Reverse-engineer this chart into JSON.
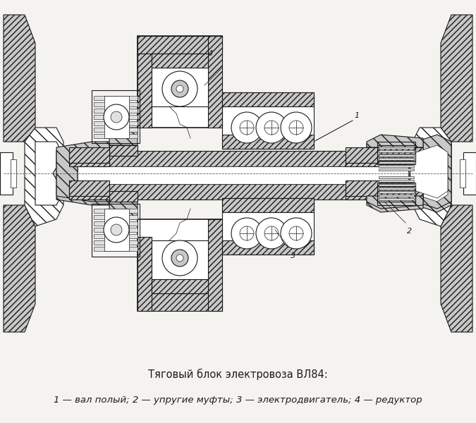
{
  "title_line1": "Тяговый блок электровоза ВЛ84:",
  "title_line2": "1 — вал полый; 2 — упругие муфты; 3 — электродвигатель; 4 — редуктор",
  "bg_color": "#f5f3ef",
  "line_color": "#1a1a1a",
  "hatch_fc": "#c8c8c8",
  "fig_width": 6.75,
  "fig_height": 6.0,
  "dpi": 100,
  "title_fontsize": 10.5,
  "caption_fontsize": 9.5
}
